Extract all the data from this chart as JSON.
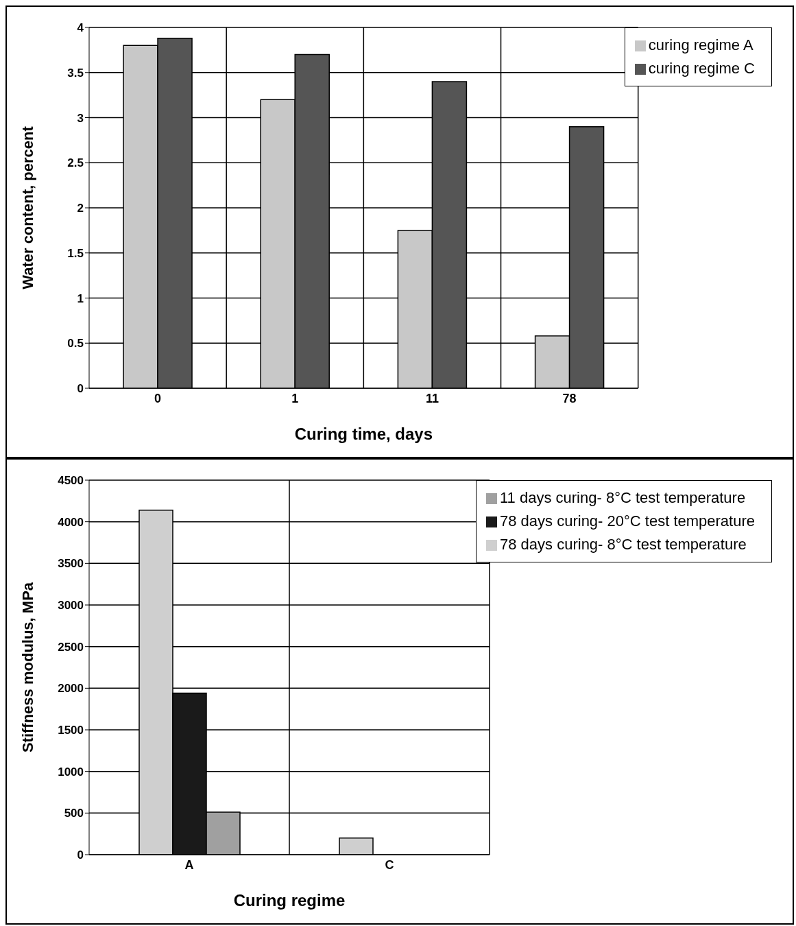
{
  "chart_data": [
    {
      "type": "bar",
      "xlabel": "Curing time, days",
      "ylabel": "Water content, percent",
      "categories": [
        "0",
        "1",
        "11",
        "78"
      ],
      "series": [
        {
          "name": "curing regime A",
          "color": "#c8c8c8",
          "values": [
            3.8,
            3.2,
            1.75,
            0.58
          ]
        },
        {
          "name": "curing regime C",
          "color": "#555555",
          "values": [
            3.88,
            3.7,
            3.4,
            2.9
          ]
        }
      ],
      "ylim": [
        0,
        4
      ],
      "yticks": [
        0,
        {
          "value": 0.5,
          "label": "0.5"
        },
        1,
        {
          "value": 1.5,
          "label": "1.5"
        },
        2,
        {
          "value": 2.5,
          "label": "2.5"
        },
        3,
        {
          "value": 3.5,
          "label": "3.5"
        },
        4
      ],
      "grid": true,
      "legend": "top right"
    },
    {
      "type": "bar",
      "xlabel": "Curing regime",
      "ylabel": "Stiffness modulus, MPa",
      "categories": [
        "A",
        "C"
      ],
      "series": [
        {
          "name": "78 days curing- 8°C test temperature",
          "color": "#cfcfcf",
          "values": [
            4140,
            200
          ]
        },
        {
          "name": "78 days curing- 20°C test temperature",
          "color": "#1a1a1a",
          "values": [
            1940,
            null
          ]
        },
        {
          "name": "11 days curing- 8°C test temperature",
          "color": "#a0a0a0",
          "values": [
            510,
            null
          ]
        }
      ],
      "ylim": [
        0,
        4500
      ],
      "yticks": [
        0,
        500,
        1000,
        1500,
        2000,
        2500,
        3000,
        3500,
        4000,
        4500
      ],
      "grid": true,
      "legend": "top right"
    }
  ]
}
